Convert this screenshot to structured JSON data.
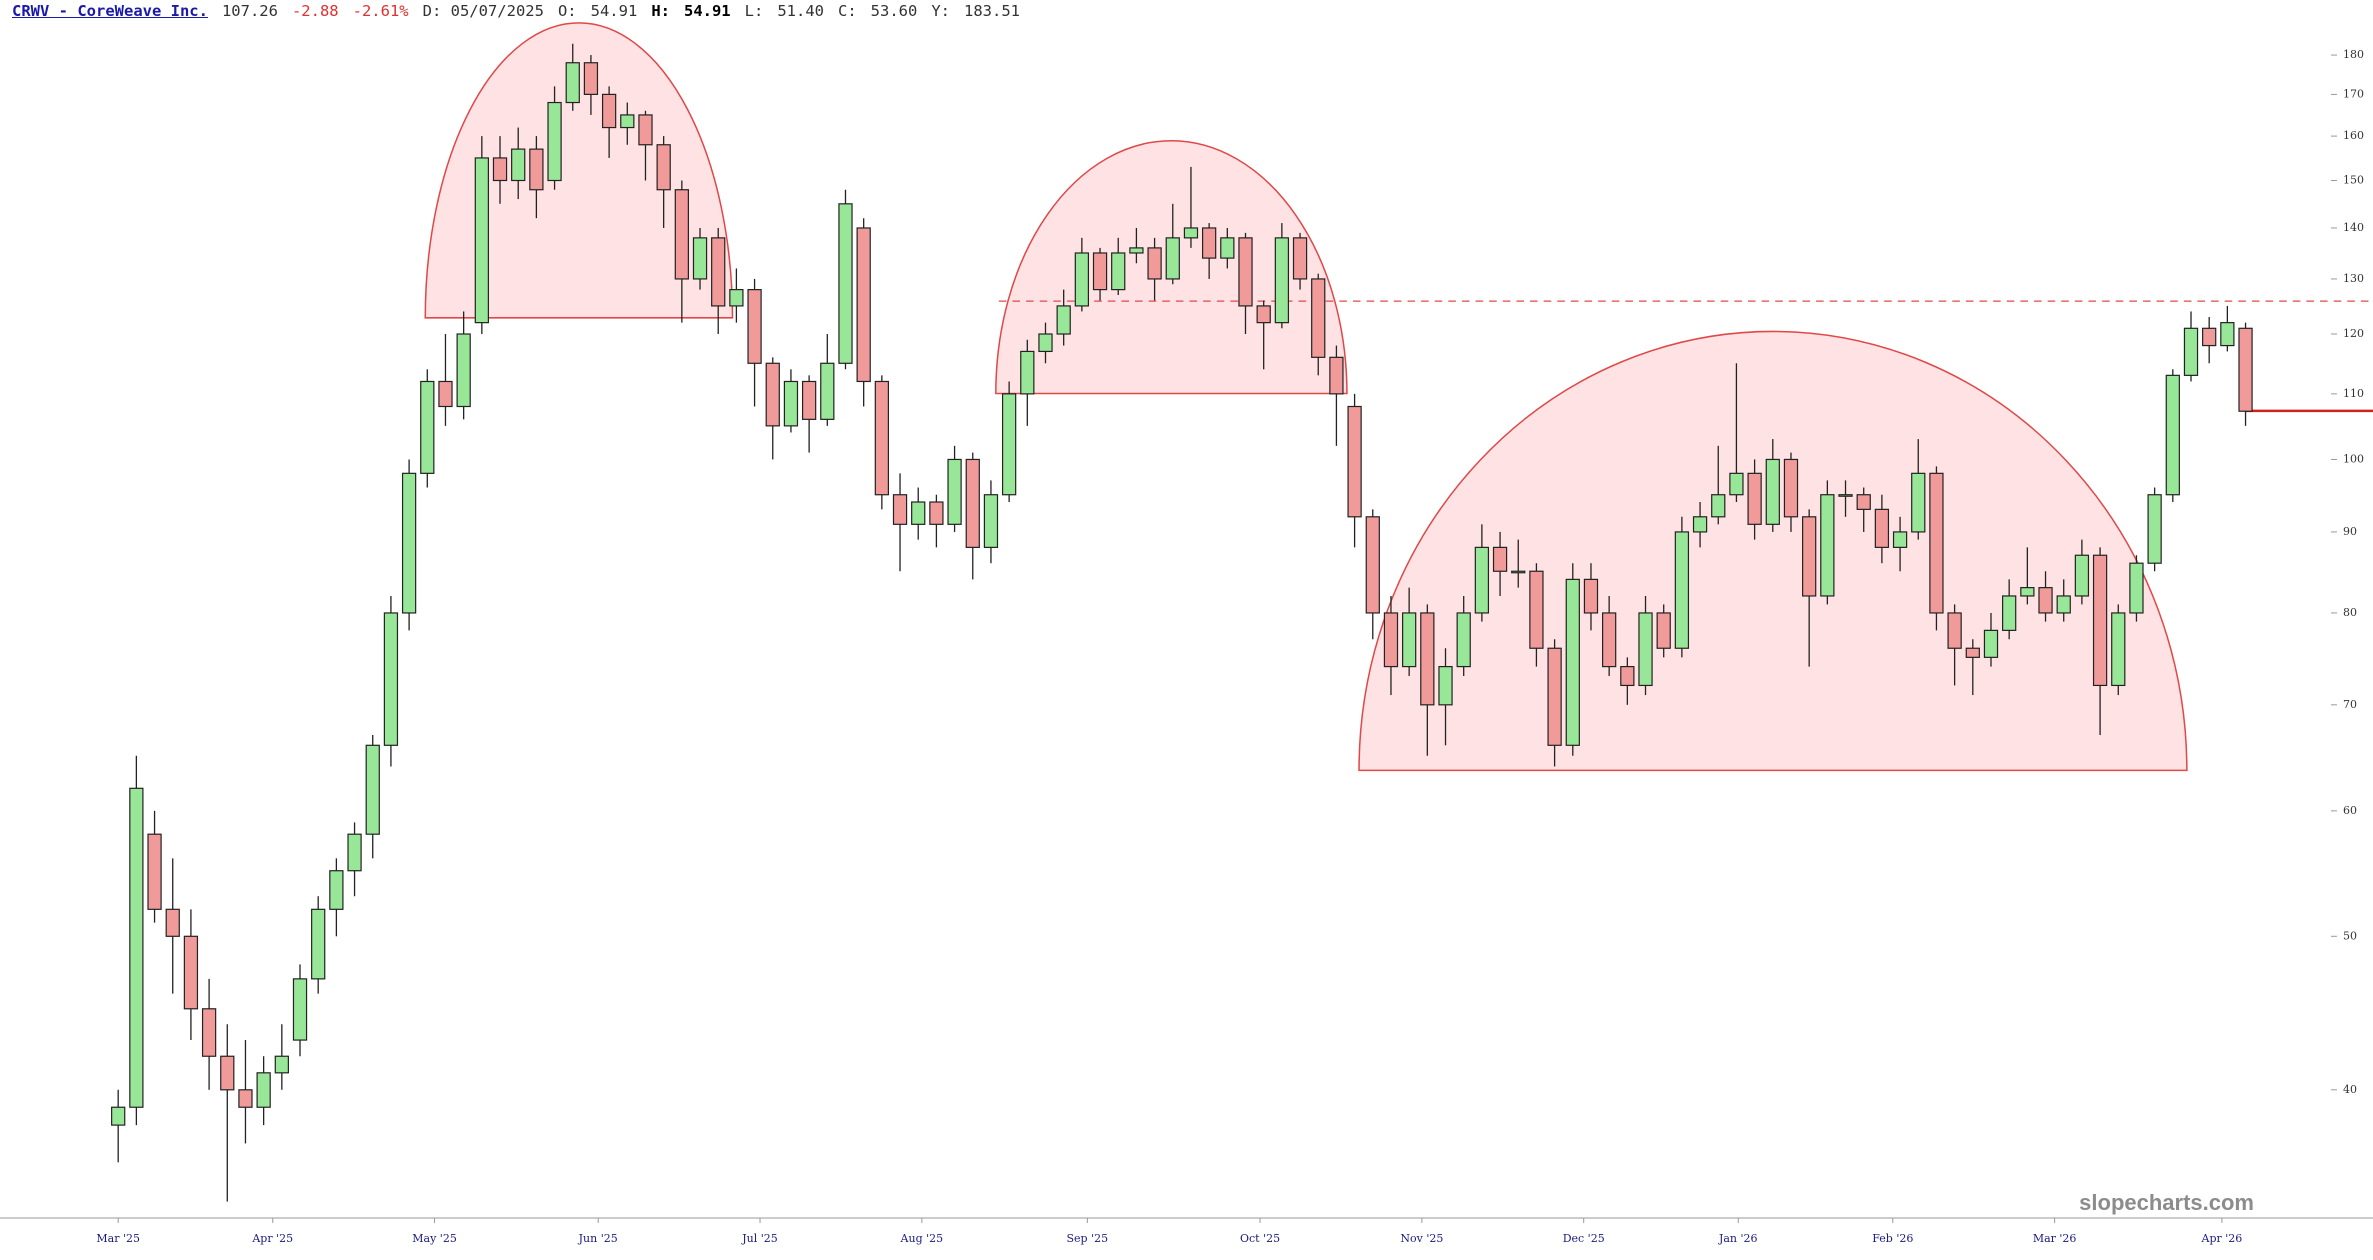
{
  "header": {
    "symbol": "CRWV - CoreWeave Inc.",
    "last": "107.26",
    "change": "-2.88",
    "change_pct": "-2.61%",
    "date": "D: 05/07/2025",
    "open_label": "O:",
    "open": "54.91",
    "high_label": "H:",
    "high": "54.91",
    "low_label": "L:",
    "low": "51.40",
    "close_label": "C:",
    "close": "53.60",
    "y_label": "Y:",
    "y_value": "183.51"
  },
  "chart_data": {
    "type": "candlestick",
    "log_scale": true,
    "watermark": "slopecharts.com",
    "up_color": "#98e698",
    "down_color": "#f09a9a",
    "ylim": [
      33.2,
      195
    ],
    "yticks": [
      40,
      50,
      60,
      70,
      80,
      90,
      100,
      110,
      120,
      130,
      140,
      150,
      160,
      170,
      180
    ],
    "xlim": [
      -6.5,
      121.7
    ],
    "xticks": [
      {
        "value": 0,
        "label": "Mar '25"
      },
      {
        "value": 8.5,
        "label": "Apr '25"
      },
      {
        "value": 17.4,
        "label": "May '25"
      },
      {
        "value": 26.4,
        "label": "Jun '25"
      },
      {
        "value": 35.3,
        "label": "Jul '25"
      },
      {
        "value": 44.2,
        "label": "Aug '25"
      },
      {
        "value": 53.3,
        "label": "Sep '25"
      },
      {
        "value": 62.8,
        "label": "Oct '25"
      },
      {
        "value": 71.7,
        "label": "Nov '25"
      },
      {
        "value": 80.6,
        "label": "Dec '25"
      },
      {
        "value": 89.1,
        "label": "Jan '26"
      },
      {
        "value": 97.6,
        "label": "Feb '26"
      },
      {
        "value": 106.5,
        "label": "Mar '26"
      },
      {
        "value": 115.7,
        "label": "Apr '26"
      }
    ],
    "candles": [
      [
        38,
        40,
        36,
        39
      ],
      [
        39,
        65,
        38,
        62
      ],
      [
        58,
        60,
        51,
        52
      ],
      [
        52,
        56,
        46,
        50
      ],
      [
        50,
        52,
        43,
        45
      ],
      [
        45,
        47,
        40,
        42
      ],
      [
        42,
        44,
        34,
        40
      ],
      [
        40,
        43,
        37,
        39
      ],
      [
        39,
        42,
        38,
        41
      ],
      [
        41,
        44,
        40,
        42
      ],
      [
        43,
        48,
        42,
        47
      ],
      [
        47,
        53,
        46,
        52
      ],
      [
        52,
        56,
        50,
        55
      ],
      [
        55,
        59,
        53,
        58
      ],
      [
        58,
        67,
        56,
        66
      ],
      [
        66,
        82,
        64,
        80
      ],
      [
        80,
        100,
        78,
        98
      ],
      [
        98,
        114,
        96,
        112
      ],
      [
        112,
        120,
        105,
        108
      ],
      [
        108,
        124,
        106,
        120
      ],
      [
        122,
        160,
        120,
        155
      ],
      [
        155,
        160,
        145,
        150
      ],
      [
        150,
        162,
        146,
        157
      ],
      [
        157,
        160,
        142,
        148
      ],
      [
        150,
        172,
        148,
        168
      ],
      [
        168,
        183,
        166,
        178
      ],
      [
        178,
        180,
        165,
        170
      ],
      [
        170,
        172,
        155,
        162
      ],
      [
        162,
        168,
        158,
        165
      ],
      [
        165,
        166,
        150,
        158
      ],
      [
        158,
        160,
        140,
        148
      ],
      [
        148,
        150,
        122,
        130
      ],
      [
        130,
        140,
        128,
        138
      ],
      [
        138,
        140,
        120,
        125
      ],
      [
        125,
        132,
        122,
        128
      ],
      [
        128,
        130,
        108,
        115
      ],
      [
        115,
        116,
        100,
        105
      ],
      [
        105,
        114,
        104,
        112
      ],
      [
        112,
        113,
        101,
        106
      ],
      [
        106,
        120,
        105,
        115
      ],
      [
        115,
        148,
        114,
        145
      ],
      [
        140,
        142,
        108,
        112
      ],
      [
        112,
        113,
        93,
        95
      ],
      [
        95,
        98,
        85,
        91
      ],
      [
        91,
        96,
        89,
        94
      ],
      [
        94,
        95,
        88,
        91
      ],
      [
        91,
        102,
        90,
        100
      ],
      [
        100,
        101,
        84,
        88
      ],
      [
        88,
        97,
        86,
        95
      ],
      [
        95,
        112,
        94,
        110
      ],
      [
        110,
        119,
        105,
        117
      ],
      [
        117,
        122,
        115,
        120
      ],
      [
        120,
        128,
        118,
        125
      ],
      [
        125,
        138,
        124,
        135
      ],
      [
        135,
        136,
        126,
        128
      ],
      [
        128,
        138,
        127,
        135
      ],
      [
        135,
        140,
        133,
        136
      ],
      [
        136,
        138,
        126,
        130
      ],
      [
        130,
        145,
        129,
        138
      ],
      [
        138,
        153,
        136,
        140
      ],
      [
        140,
        141,
        130,
        134
      ],
      [
        134,
        140,
        132,
        138
      ],
      [
        138,
        139,
        120,
        125
      ],
      [
        125,
        126,
        114,
        122
      ],
      [
        122,
        141,
        121,
        138
      ],
      [
        138,
        139,
        128,
        130
      ],
      [
        130,
        131,
        113,
        116
      ],
      [
        116,
        118,
        102,
        110
      ],
      [
        108,
        110,
        88,
        92
      ],
      [
        92,
        93,
        77,
        80
      ],
      [
        80,
        82,
        71,
        74
      ],
      [
        74,
        83,
        73,
        80
      ],
      [
        80,
        81,
        65,
        70
      ],
      [
        70,
        76,
        66,
        74
      ],
      [
        74,
        82,
        73,
        80
      ],
      [
        80,
        91,
        79,
        88
      ],
      [
        88,
        90,
        82,
        85
      ],
      [
        85,
        89,
        83,
        85
      ],
      [
        85,
        86,
        74,
        76
      ],
      [
        76,
        77,
        64,
        66
      ],
      [
        66,
        86,
        65,
        84
      ],
      [
        84,
        86,
        78,
        80
      ],
      [
        80,
        82,
        73,
        74
      ],
      [
        74,
        75,
        70,
        72
      ],
      [
        72,
        82,
        71,
        80
      ],
      [
        80,
        81,
        75,
        76
      ],
      [
        76,
        92,
        75,
        90
      ],
      [
        90,
        94,
        88,
        92
      ],
      [
        92,
        102,
        91,
        95
      ],
      [
        95,
        115,
        94,
        98
      ],
      [
        98,
        100,
        89,
        91
      ],
      [
        91,
        103,
        90,
        100
      ],
      [
        100,
        101,
        90,
        92
      ],
      [
        92,
        93,
        74,
        82
      ],
      [
        82,
        97,
        81,
        95
      ],
      [
        95,
        97,
        92,
        95
      ],
      [
        95,
        96,
        90,
        93
      ],
      [
        93,
        95,
        86,
        88
      ],
      [
        88,
        92,
        85,
        90
      ],
      [
        90,
        103,
        89,
        98
      ],
      [
        98,
        99,
        78,
        80
      ],
      [
        80,
        81,
        72,
        76
      ],
      [
        76,
        77,
        71,
        75
      ],
      [
        75,
        80,
        74,
        78
      ],
      [
        78,
        84,
        77,
        82
      ],
      [
        82,
        88,
        81,
        83
      ],
      [
        83,
        85,
        79,
        80
      ],
      [
        80,
        84,
        79,
        82
      ],
      [
        82,
        89,
        81,
        87
      ],
      [
        87,
        88,
        67,
        72
      ],
      [
        72,
        81,
        71,
        80
      ],
      [
        80,
        87,
        79,
        86
      ],
      [
        86,
        96,
        85,
        95
      ],
      [
        95,
        114,
        94,
        113
      ],
      [
        113,
        124,
        112,
        121
      ],
      [
        121,
        123,
        115,
        118
      ],
      [
        118,
        125,
        117,
        122
      ],
      [
        121,
        122,
        105,
        107.26
      ]
    ]
  }
}
